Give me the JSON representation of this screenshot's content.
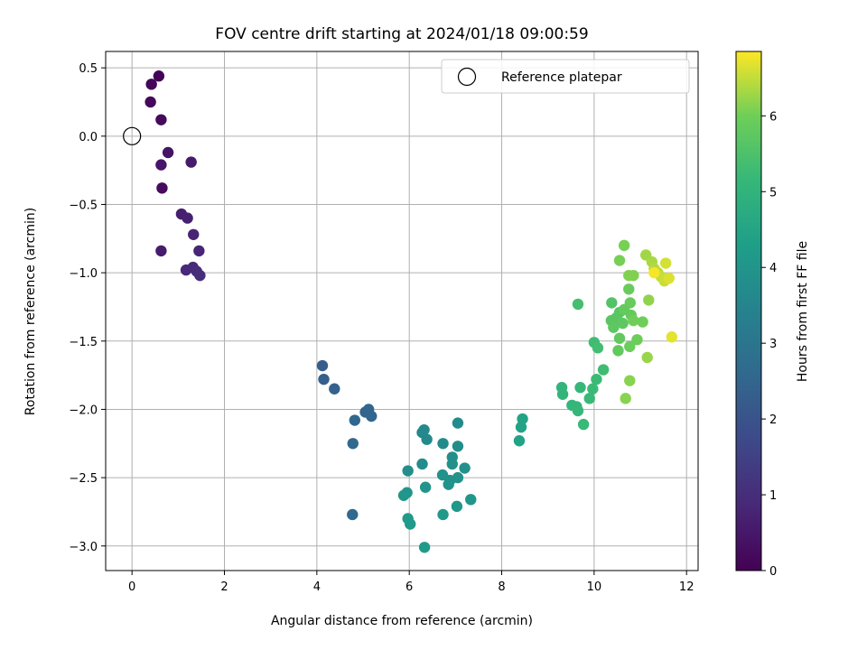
{
  "chart_data": {
    "type": "scatter",
    "title": "FOV centre drift starting at 2024/01/18 09:00:59",
    "xlabel": "Angular distance from reference (arcmin)",
    "ylabel": "Rotation from reference (arcmin)",
    "xlim": [
      -0.57,
      12.25
    ],
    "ylim": [
      -3.18,
      0.62
    ],
    "x_ticks": [
      0,
      2,
      4,
      6,
      8,
      10,
      12
    ],
    "y_ticks": [
      0.5,
      0.0,
      -0.5,
      -1.0,
      -1.5,
      -2.0,
      -2.5,
      -3.0
    ],
    "x_tick_labels": [
      "0",
      "2",
      "4",
      "6",
      "8",
      "10",
      "12"
    ],
    "y_tick_labels": [
      "0.5",
      "0.0",
      "−0.5",
      "−1.0",
      "−1.5",
      "−2.0",
      "−2.5",
      "−3.0"
    ],
    "grid": true,
    "legend": {
      "entries": [
        "Reference platepar"
      ],
      "placement": "top-right"
    },
    "reference": {
      "label": "Reference platepar",
      "x": 0.0,
      "y": 0.0
    },
    "colorbar": {
      "label": "Hours from first FF file",
      "colormap": "viridis",
      "range": [
        0,
        6.85
      ],
      "ticks": [
        0,
        1,
        2,
        3,
        4,
        5,
        6
      ],
      "tick_labels": [
        "0",
        "1",
        "2",
        "3",
        "4",
        "5",
        "6"
      ]
    },
    "points": [
      {
        "x": 0.58,
        "y": 0.44,
        "h": 0.05
      },
      {
        "x": 0.42,
        "y": 0.38,
        "h": 0.1
      },
      {
        "x": 0.4,
        "y": 0.25,
        "h": 0.15
      },
      {
        "x": 0.63,
        "y": 0.12,
        "h": 0.2
      },
      {
        "x": 0.65,
        "y": -0.38,
        "h": 0.25
      },
      {
        "x": 0.78,
        "y": -0.12,
        "h": 0.4
      },
      {
        "x": 0.63,
        "y": -0.21,
        "h": 0.45
      },
      {
        "x": 1.28,
        "y": -0.19,
        "h": 0.55
      },
      {
        "x": 0.63,
        "y": -0.84,
        "h": 0.6
      },
      {
        "x": 1.07,
        "y": -0.57,
        "h": 0.65
      },
      {
        "x": 1.2,
        "y": -0.6,
        "h": 0.7
      },
      {
        "x": 1.33,
        "y": -0.72,
        "h": 0.75
      },
      {
        "x": 1.45,
        "y": -0.84,
        "h": 0.8
      },
      {
        "x": 1.17,
        "y": -0.98,
        "h": 0.85
      },
      {
        "x": 1.32,
        "y": -0.96,
        "h": 0.9
      },
      {
        "x": 1.4,
        "y": -0.99,
        "h": 0.95
      },
      {
        "x": 1.47,
        "y": -1.02,
        "h": 1.0
      },
      {
        "x": 4.12,
        "y": -1.68,
        "h": 2.3
      },
      {
        "x": 4.15,
        "y": -1.78,
        "h": 2.35
      },
      {
        "x": 4.38,
        "y": -1.85,
        "h": 2.4
      },
      {
        "x": 5.05,
        "y": -2.02,
        "h": 2.45
      },
      {
        "x": 5.12,
        "y": -2.0,
        "h": 2.5
      },
      {
        "x": 5.18,
        "y": -2.05,
        "h": 2.5
      },
      {
        "x": 4.82,
        "y": -2.08,
        "h": 2.55
      },
      {
        "x": 4.78,
        "y": -2.25,
        "h": 2.6
      },
      {
        "x": 4.77,
        "y": -2.77,
        "h": 2.65
      },
      {
        "x": 6.32,
        "y": -2.15,
        "h": 3.6
      },
      {
        "x": 6.28,
        "y": -2.17,
        "h": 3.65
      },
      {
        "x": 6.38,
        "y": -2.22,
        "h": 3.65
      },
      {
        "x": 6.73,
        "y": -2.25,
        "h": 3.7
      },
      {
        "x": 7.05,
        "y": -2.1,
        "h": 3.7
      },
      {
        "x": 7.05,
        "y": -2.27,
        "h": 3.75
      },
      {
        "x": 6.28,
        "y": -2.4,
        "h": 3.75
      },
      {
        "x": 5.97,
        "y": -2.45,
        "h": 3.8
      },
      {
        "x": 6.93,
        "y": -2.35,
        "h": 3.8
      },
      {
        "x": 6.93,
        "y": -2.4,
        "h": 3.85
      },
      {
        "x": 7.2,
        "y": -2.43,
        "h": 3.85
      },
      {
        "x": 6.72,
        "y": -2.48,
        "h": 3.9
      },
      {
        "x": 6.88,
        "y": -2.52,
        "h": 3.9
      },
      {
        "x": 7.05,
        "y": -2.5,
        "h": 3.95
      },
      {
        "x": 6.85,
        "y": -2.55,
        "h": 3.95
      },
      {
        "x": 6.35,
        "y": -2.57,
        "h": 4.0
      },
      {
        "x": 5.95,
        "y": -2.61,
        "h": 4.0
      },
      {
        "x": 5.88,
        "y": -2.63,
        "h": 4.05
      },
      {
        "x": 7.33,
        "y": -2.66,
        "h": 4.05
      },
      {
        "x": 7.03,
        "y": -2.71,
        "h": 4.1
      },
      {
        "x": 6.73,
        "y": -2.77,
        "h": 4.1
      },
      {
        "x": 5.97,
        "y": -2.8,
        "h": 4.15
      },
      {
        "x": 6.02,
        "y": -2.84,
        "h": 4.15
      },
      {
        "x": 6.33,
        "y": -3.01,
        "h": 4.2
      },
      {
        "x": 8.45,
        "y": -2.07,
        "h": 4.45
      },
      {
        "x": 8.42,
        "y": -2.13,
        "h": 4.45
      },
      {
        "x": 8.38,
        "y": -2.23,
        "h": 4.45
      },
      {
        "x": 9.3,
        "y": -1.84,
        "h": 5.05
      },
      {
        "x": 9.32,
        "y": -1.89,
        "h": 5.05
      },
      {
        "x": 9.52,
        "y": -1.97,
        "h": 5.1
      },
      {
        "x": 9.62,
        "y": -1.98,
        "h": 5.1
      },
      {
        "x": 9.65,
        "y": -2.01,
        "h": 5.15
      },
      {
        "x": 9.7,
        "y": -1.84,
        "h": 5.15
      },
      {
        "x": 9.77,
        "y": -2.11,
        "h": 5.2
      },
      {
        "x": 9.9,
        "y": -1.92,
        "h": 5.2
      },
      {
        "x": 9.97,
        "y": -1.85,
        "h": 5.25
      },
      {
        "x": 10.05,
        "y": -1.78,
        "h": 5.25
      },
      {
        "x": 10.2,
        "y": -1.71,
        "h": 5.3
      },
      {
        "x": 10.0,
        "y": -1.51,
        "h": 5.3
      },
      {
        "x": 10.08,
        "y": -1.55,
        "h": 5.35
      },
      {
        "x": 9.65,
        "y": -1.23,
        "h": 5.4
      },
      {
        "x": 10.38,
        "y": -1.22,
        "h": 5.6
      },
      {
        "x": 10.55,
        "y": -1.29,
        "h": 5.65
      },
      {
        "x": 10.37,
        "y": -1.35,
        "h": 5.7
      },
      {
        "x": 10.48,
        "y": -1.33,
        "h": 5.7
      },
      {
        "x": 10.42,
        "y": -1.4,
        "h": 5.75
      },
      {
        "x": 10.62,
        "y": -1.37,
        "h": 5.75
      },
      {
        "x": 10.55,
        "y": -1.48,
        "h": 5.8
      },
      {
        "x": 10.52,
        "y": -1.57,
        "h": 5.8
      },
      {
        "x": 10.65,
        "y": -1.27,
        "h": 5.85
      },
      {
        "x": 10.8,
        "y": -1.31,
        "h": 5.85
      },
      {
        "x": 10.75,
        "y": -1.12,
        "h": 5.9
      },
      {
        "x": 10.78,
        "y": -1.22,
        "h": 5.9
      },
      {
        "x": 10.77,
        "y": -1.54,
        "h": 5.95
      },
      {
        "x": 10.93,
        "y": -1.49,
        "h": 5.95
      },
      {
        "x": 10.85,
        "y": -1.35,
        "h": 6.0
      },
      {
        "x": 11.05,
        "y": -1.36,
        "h": 6.0
      },
      {
        "x": 10.55,
        "y": -0.91,
        "h": 6.05
      },
      {
        "x": 10.65,
        "y": -0.8,
        "h": 6.05
      },
      {
        "x": 10.75,
        "y": -1.02,
        "h": 6.1
      },
      {
        "x": 10.85,
        "y": -1.02,
        "h": 6.1
      },
      {
        "x": 10.77,
        "y": -1.79,
        "h": 6.15
      },
      {
        "x": 10.68,
        "y": -1.92,
        "h": 6.15
      },
      {
        "x": 11.18,
        "y": -1.2,
        "h": 6.2
      },
      {
        "x": 11.15,
        "y": -1.62,
        "h": 6.25
      },
      {
        "x": 11.12,
        "y": -0.87,
        "h": 6.3
      },
      {
        "x": 11.25,
        "y": -0.92,
        "h": 6.35
      },
      {
        "x": 11.3,
        "y": -0.97,
        "h": 6.4
      },
      {
        "x": 11.38,
        "y": -1.0,
        "h": 6.45
      },
      {
        "x": 11.45,
        "y": -1.03,
        "h": 6.5
      },
      {
        "x": 11.52,
        "y": -1.06,
        "h": 6.55
      },
      {
        "x": 11.55,
        "y": -0.93,
        "h": 6.6
      },
      {
        "x": 11.62,
        "y": -1.04,
        "h": 6.65
      },
      {
        "x": 11.68,
        "y": -1.47,
        "h": 6.7
      },
      {
        "x": 11.3,
        "y": -1.0,
        "h": 6.8
      }
    ]
  }
}
